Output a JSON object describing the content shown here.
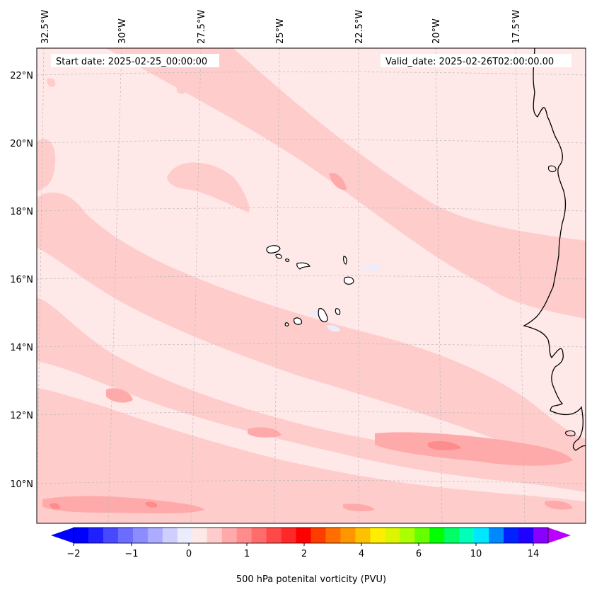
{
  "map": {
    "start_date": "Start date: 2025-02-25_00:00:00",
    "valid_date": "Valid_date: 2025-02-26T02:00:00.00",
    "lon_labels": [
      "32.5°W",
      "30°W",
      "27.5°W",
      "25°W",
      "22.5°W",
      "20°W",
      "17.5°W"
    ],
    "lat_labels": [
      "22°N",
      "20°N",
      "18°N",
      "16°N",
      "14°N",
      "12°N",
      "10°N"
    ],
    "background_color": "#ffe8e8",
    "band_color": "#ffcccc",
    "strong_color": "#ffaaaa",
    "peak_color": "#ff8c8c",
    "coast_color": "#000000"
  },
  "colorbar": {
    "label": "500 hPa potenital vorticity (PVU)",
    "tick_labels": [
      "−2",
      "−1",
      "0",
      "1",
      "2",
      "4",
      "6",
      "10",
      "14"
    ],
    "colors": [
      "#0000ff",
      "#2020ff",
      "#4848ff",
      "#6c6cff",
      "#8c8cff",
      "#ababff",
      "#cfcfff",
      "#ececff",
      "#ffe8e8",
      "#ffcccc",
      "#ffaaaa",
      "#ff8c8c",
      "#ff6c6c",
      "#ff4848",
      "#ff2828",
      "#ff0000",
      "#ff3c00",
      "#ff6e00",
      "#ff9600",
      "#ffc000",
      "#ffee00",
      "#ddf500",
      "#aaff00",
      "#66ff00",
      "#00ff00",
      "#00ff66",
      "#00ffbb",
      "#00e6ff",
      "#0088ff",
      "#0022ff",
      "#2200ff",
      "#8800ff"
    ],
    "under_color": "#0000ff",
    "over_color": "#bb00ff"
  }
}
